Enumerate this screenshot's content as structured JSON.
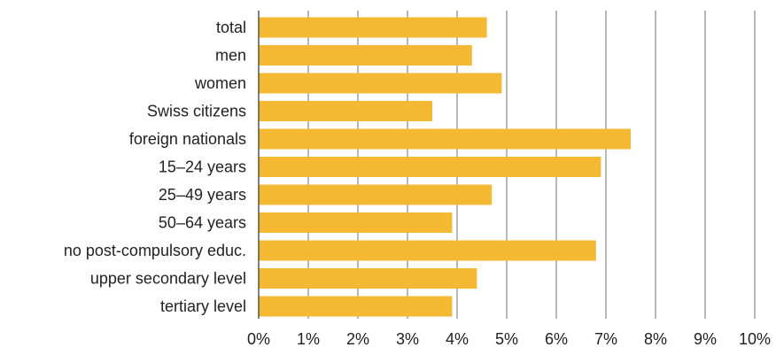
{
  "chart_data": {
    "type": "bar",
    "orientation": "horizontal",
    "categories": [
      "total",
      "men",
      "women",
      "Swiss citizens",
      "foreign nationals",
      "15–24 years",
      "25–49 years",
      "50–64 years",
      "no post-compulsory educ.",
      "upper secondary level",
      "tertiary level"
    ],
    "values": [
      4.6,
      4.3,
      4.9,
      3.5,
      7.5,
      6.9,
      4.7,
      3.9,
      6.8,
      4.4,
      3.9
    ],
    "xlim": [
      0,
      10
    ],
    "x_ticks": [
      0,
      1,
      2,
      3,
      4,
      5,
      6,
      7,
      8,
      9,
      10
    ],
    "x_tick_labels": [
      "0%",
      "1%",
      "2%",
      "3%",
      "4%",
      "5%",
      "6%",
      "7%",
      "8%",
      "9%",
      "10%"
    ],
    "title": "",
    "xlabel": "",
    "ylabel": "",
    "grid": "vertical",
    "legend": "none",
    "colors": {
      "bar": "#F5B833",
      "grid": "#8a8a8a",
      "axis": "#555555",
      "text": "#222222"
    }
  }
}
